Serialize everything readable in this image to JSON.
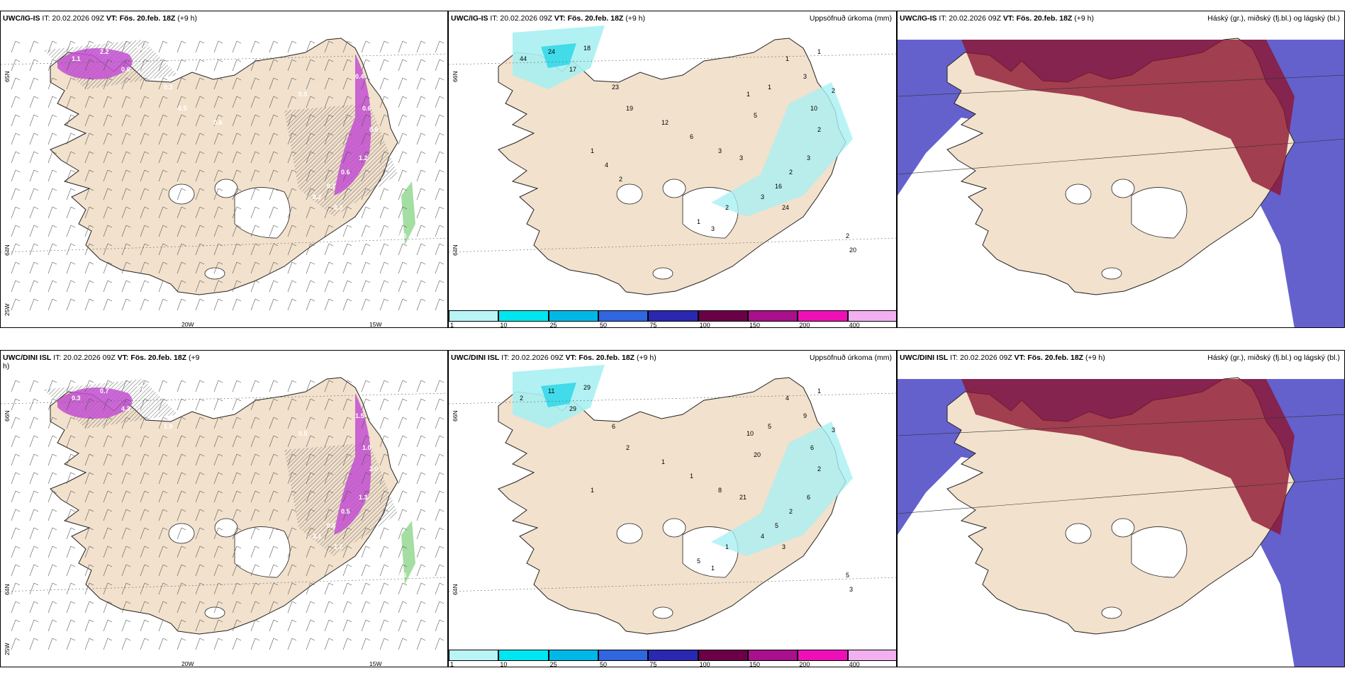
{
  "colors": {
    "land": "#f2e1cc",
    "precip_light": "#a9f0f2",
    "precip_mid": "#35d8e8",
    "precip_purple": "#c34fd1",
    "low_cloud": "#5350c8",
    "high_cloud": "#8c1530",
    "snow_green": "#7ed07a"
  },
  "panels": [
    {
      "id": "top-left",
      "model": "UWC/IG-IS",
      "it_label": " IT: 20.02.2026 09Z ",
      "vt_label": "VT: Fös. 20.feb. 18Z",
      "lead": " (+9 h)",
      "right_title": "",
      "lat_labels": [
        "65N",
        "64N",
        "25W"
      ],
      "lon_labels": [
        "20W",
        "15W"
      ],
      "values": [
        "1.1",
        "2.2",
        "0.6",
        "14.2",
        "0.3",
        "0.5",
        "0.4",
        "0.6",
        "0.8",
        "1.2",
        "0.6",
        "0.7",
        "0.2",
        "0.3",
        "0.5",
        "0.8",
        "0.5",
        "0.6"
      ]
    },
    {
      "id": "top-middle",
      "model": "UWC/IG-IS",
      "it_label": " IT: 20.02.2026 09Z ",
      "vt_label": "VT: Fös. 20.feb. 18Z",
      "lead": " (+9 h)",
      "right_title": "Uppsöfnuð úrkoma (mm)",
      "lat_labels": [
        "66N",
        "64N"
      ],
      "lon_labels": [],
      "values": [
        "44",
        "24",
        "17",
        "18",
        "23",
        "1",
        "3",
        "10",
        "2",
        "3",
        "2",
        "16",
        "3",
        "24",
        "2",
        "20",
        "19",
        "12",
        "6",
        "3",
        "3",
        "5",
        "1",
        "1",
        "1",
        "2",
        "1",
        "3",
        "2",
        "1",
        "4",
        "2"
      ]
    },
    {
      "id": "top-right",
      "model": "UWC/IG-IS",
      "it_label": " IT: 20.02.2026 09Z ",
      "vt_label": "VT: Fös. 20.feb. 18Z",
      "lead": " (+9 h)",
      "right_title": "Háský (gr.), miðský (fj.bl.) og lágský (bl.)",
      "lat_labels": [],
      "lon_labels": [],
      "values": []
    },
    {
      "id": "bottom-left",
      "model": "UWC/DINI ISL",
      "it_label": " IT: 20.02.2026 09Z ",
      "vt_label": "VT: Fös. 20.feb. 18Z",
      "lead": " (+9",
      "lead2": "h)",
      "right_title": "",
      "lat_labels": [
        "66N",
        "64N",
        "25W"
      ],
      "lon_labels": [
        "20W",
        "15W"
      ],
      "values": [
        "0.3",
        "0.7",
        "4.3",
        "2.1",
        "1.9",
        "0.5",
        "1.5",
        "1.0",
        "2.0",
        "1.3",
        "0.5",
        "0.6",
        "3.1",
        "1.7",
        "0.6"
      ]
    },
    {
      "id": "bottom-middle",
      "model": "UWC/DINI ISL",
      "it_label": " IT: 20.02.2026 09Z ",
      "vt_label": "VT: Fös. 20.feb. 18Z",
      "lead": " (+9 h)",
      "right_title": "Uppsöfnuð úrkoma (mm)",
      "lat_labels": [
        "66N",
        "64N"
      ],
      "lon_labels": [],
      "values": [
        "2",
        "11",
        "29",
        "29",
        "6",
        "10",
        "9",
        "6",
        "2",
        "6",
        "2",
        "5",
        "4",
        "3",
        "5",
        "3",
        "2",
        "1",
        "1",
        "8",
        "21",
        "20",
        "5",
        "4",
        "1",
        "3",
        "5",
        "1",
        "1",
        "1"
      ]
    },
    {
      "id": "bottom-right",
      "model": "UWC/DINI ISL",
      "it_label": " IT: 20.02.2026 09Z ",
      "vt_label": "VT: Fös. 20.feb. 18Z",
      "lead": " (+9 h)",
      "right_title": "Háský (gr.), miðský (fj.bl.) og lágský (bl.)",
      "lat_labels": [],
      "lon_labels": [],
      "values": []
    }
  ],
  "colorbar": {
    "ticks": [
      "1",
      "10",
      "25",
      "50",
      "75",
      "100",
      "150",
      "200",
      "400"
    ],
    "colors": [
      "#b9f5f7",
      "#00e6f0",
      "#00b8e8",
      "#3066e0",
      "#2a28b0",
      "#6a0046",
      "#a8108c",
      "#ee10b6",
      "#f2b0f0"
    ]
  }
}
